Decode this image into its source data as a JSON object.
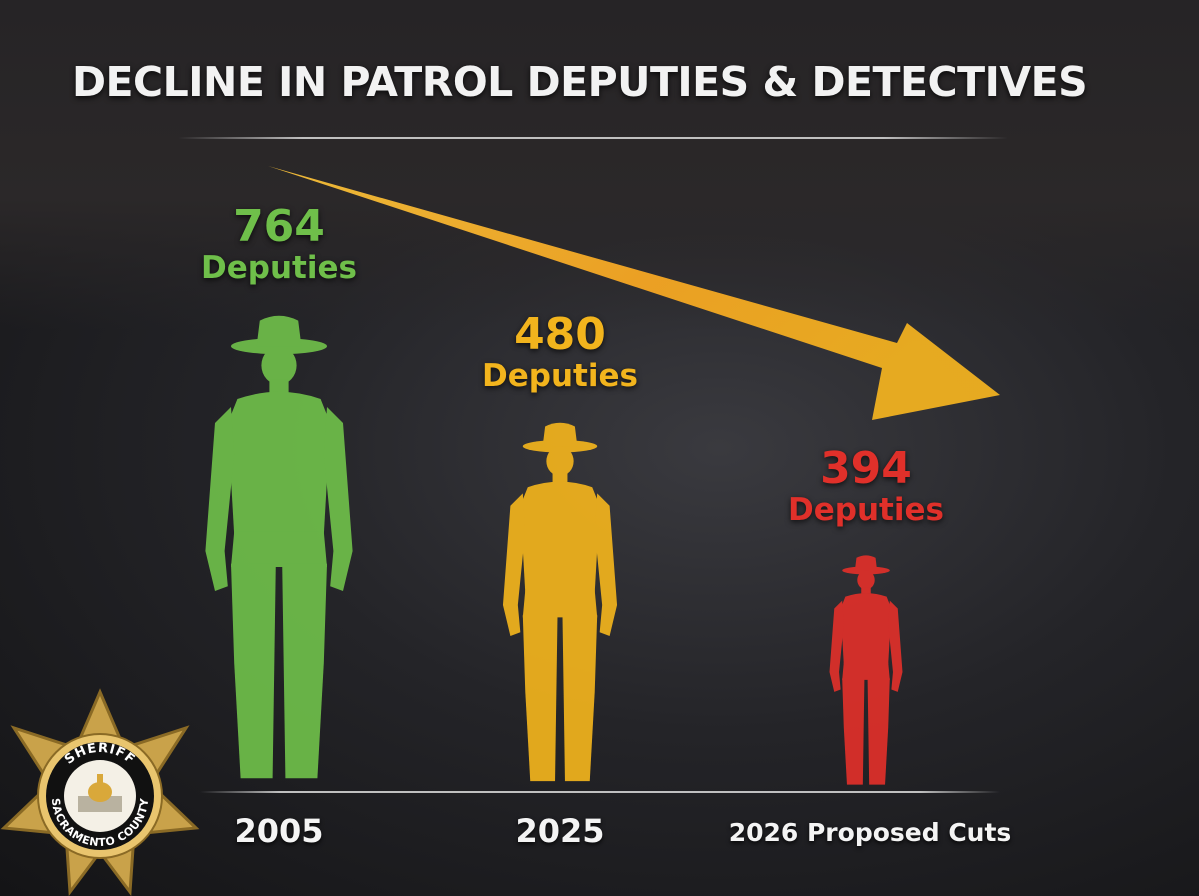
{
  "title": "DECLINE IN PATROL DEPUTIES & DETECTIVES",
  "badge": {
    "top_text": "SHERIFF",
    "bottom_text": "SACRAMENTO COUNTY"
  },
  "colors": {
    "green": "#6fbf4a",
    "yellow": "#f2b41d",
    "red": "#e0302a",
    "arrow": "#f5a623",
    "text": "#f4f4f4"
  },
  "chart_data": {
    "type": "bar",
    "title": "DECLINE IN PATROL DEPUTIES & DETECTIVES",
    "categories": [
      "2005",
      "2025",
      "2026 Proposed Cuts"
    ],
    "values": [
      764,
      480,
      394
    ],
    "value_labels": [
      "764",
      "480",
      "394"
    ],
    "unit_label": "Deputies",
    "series_colors": [
      "#6fbf4a",
      "#f2b41d",
      "#e0302a"
    ],
    "trend": "decline",
    "grid": false,
    "legend": "none"
  }
}
